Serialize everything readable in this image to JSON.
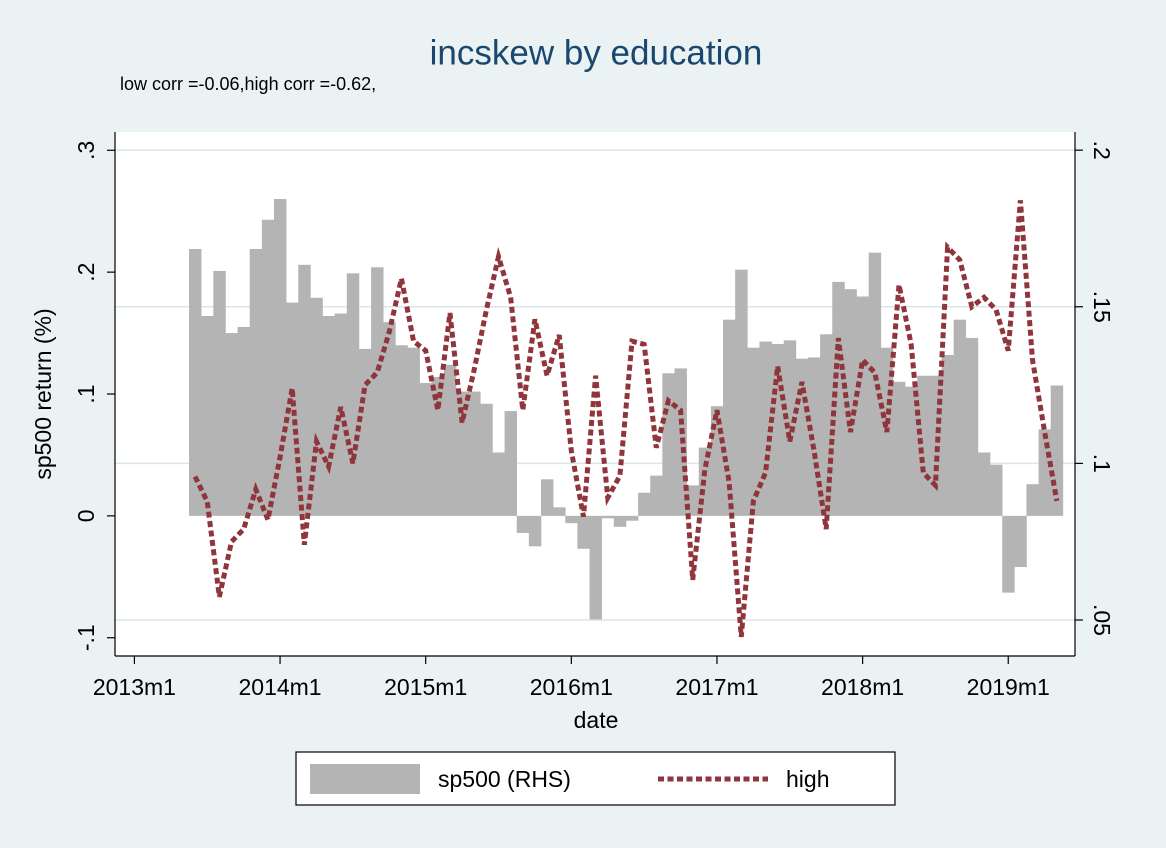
{
  "chart_data": {
    "type": "bar-line",
    "title": "incskew by education",
    "subtitle": "low corr =-0.06,high corr =-0.62,",
    "x_label": "date",
    "y_label": "sp500 return (%)",
    "x": [
      641,
      642,
      643,
      644,
      645,
      646,
      647,
      648,
      649,
      650,
      651,
      652,
      653,
      654,
      655,
      656,
      657,
      658,
      659,
      660,
      661,
      662,
      663,
      664,
      665,
      666,
      667,
      668,
      669,
      670,
      671,
      672,
      673,
      674,
      675,
      676,
      677,
      678,
      679,
      680,
      681,
      682,
      683,
      684,
      685,
      686,
      687,
      688,
      689,
      690,
      691,
      692,
      693,
      694,
      695,
      696,
      697,
      698,
      699,
      700,
      701,
      702,
      703,
      704,
      705,
      706,
      707,
      708,
      709,
      710,
      711,
      712
    ],
    "series": [
      {
        "name": "sp500 (RHS)",
        "type": "bar",
        "axis": "y",
        "color": "#b4b4b4",
        "values": [
          0.219,
          0.164,
          0.201,
          0.15,
          0.155,
          0.219,
          0.243,
          0.26,
          0.175,
          0.206,
          0.179,
          0.164,
          0.166,
          0.199,
          0.137,
          0.204,
          0.159,
          0.14,
          0.138,
          0.109,
          0.114,
          0.124,
          0.102,
          0.102,
          0.092,
          0.052,
          0.086,
          -0.014,
          -0.025,
          0.03,
          0.007,
          -0.006,
          -0.027,
          -0.085,
          -0.002,
          -0.009,
          -0.004,
          0.019,
          0.033,
          0.117,
          0.121,
          0.025,
          0.056,
          0.09,
          0.161,
          0.202,
          0.138,
          0.143,
          0.141,
          0.144,
          0.129,
          0.13,
          0.149,
          0.192,
          0.186,
          0.18,
          0.216,
          0.138,
          0.11,
          0.106,
          0.115,
          0.115,
          0.132,
          0.161,
          0.146,
          0.052,
          0.042,
          -0.063,
          -0.042,
          0.026,
          0.071,
          0.107
        ]
      },
      {
        "name": "high",
        "type": "line",
        "axis": "y2",
        "color": "#90353b",
        "values": [
          0.0958,
          0.0878,
          0.0574,
          0.075,
          0.079,
          0.0917,
          0.082,
          0.102,
          0.124,
          0.074,
          0.107,
          0.099,
          0.118,
          0.1,
          0.125,
          0.129,
          0.142,
          0.159,
          0.139,
          0.136,
          0.117,
          0.148,
          0.113,
          0.13,
          0.149,
          0.166,
          0.153,
          0.117,
          0.146,
          0.128,
          0.141,
          0.104,
          0.083,
          0.128,
          0.089,
          0.096,
          0.139,
          0.138,
          0.105,
          0.12,
          0.117,
          0.0628,
          0.098,
          0.117,
          0.094,
          0.0446,
          0.088,
          0.097,
          0.131,
          0.107,
          0.126,
          0.104,
          0.079,
          0.14,
          0.11,
          0.133,
          0.129,
          0.11,
          0.157,
          0.138,
          0.097,
          0.093,
          0.169,
          0.165,
          0.15,
          0.153,
          0.149,
          0.136,
          0.184,
          0.133,
          0.11,
          0.088
        ]
      }
    ],
    "xlim": [
      634.4,
      713.5
    ],
    "xticks": [
      {
        "value": 636,
        "label": "2013m1"
      },
      {
        "value": 648,
        "label": "2014m1"
      },
      {
        "value": 660,
        "label": "2015m1"
      },
      {
        "value": 672,
        "label": "2016m1"
      },
      {
        "value": 684,
        "label": "2017m1"
      },
      {
        "value": 696,
        "label": "2018m1"
      },
      {
        "value": 708,
        "label": "2019m1"
      }
    ],
    "ylim": [
      -0.115,
      0.315
    ],
    "yticks": [
      {
        "value": -0.1,
        "label": "-.1"
      },
      0,
      {
        "value": 0.1,
        "label": ".1"
      },
      {
        "value": 0.2,
        "label": ".2"
      },
      {
        "value": 0.3,
        "label": ".3"
      }
    ],
    "y2lim": [
      0.0385,
      0.2058
    ],
    "y2ticks": [
      {
        "value": 0.05,
        "label": ".05"
      },
      {
        "value": 0.1,
        "label": ".1"
      },
      {
        "value": 0.15,
        "label": ".15"
      },
      {
        "value": 0.2,
        "label": ".2"
      }
    ],
    "grid": "y2",
    "legend": "bottom"
  }
}
